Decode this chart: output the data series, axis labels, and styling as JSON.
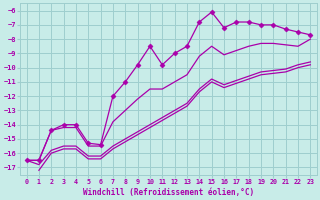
{
  "bg_color": "#c8ece8",
  "grid_color": "#9ecece",
  "line_color": "#aa00aa",
  "xlabel": "Windchill (Refroidissement éolien,°C)",
  "ylim": [
    -17.5,
    -5.5
  ],
  "xlim": [
    -0.5,
    23.5
  ],
  "xticks": [
    0,
    1,
    2,
    3,
    4,
    5,
    6,
    7,
    8,
    9,
    10,
    11,
    12,
    13,
    14,
    15,
    16,
    17,
    18,
    19,
    20,
    21,
    22,
    23
  ],
  "yticks": [
    -6,
    -7,
    -8,
    -9,
    -10,
    -11,
    -12,
    -13,
    -14,
    -15,
    -16,
    -17
  ],
  "lines": [
    {
      "x": [
        0,
        1,
        2,
        3,
        4,
        5,
        6,
        7,
        8,
        9,
        10,
        11,
        12,
        13,
        14,
        15,
        16,
        17,
        18,
        19,
        20,
        21,
        22,
        23
      ],
      "y": [
        -16.5,
        -16.5,
        -14.4,
        -14.0,
        -14.0,
        -15.3,
        -15.4,
        -12.0,
        -11.0,
        -9.8,
        -8.5,
        -9.8,
        -9.0,
        -8.5,
        -6.8,
        -6.1,
        -7.2,
        -6.8,
        -6.8,
        -7.0,
        -7.0,
        -7.3,
        -7.5,
        -7.7
      ],
      "marker": "D",
      "markersize": 2.5,
      "lw": 0.9
    },
    {
      "x": [
        0,
        1,
        2,
        3,
        4,
        5,
        6,
        7,
        8,
        9,
        10,
        11,
        12,
        13,
        14,
        15,
        16,
        17,
        18,
        19,
        20,
        21,
        22,
        23
      ],
      "y": [
        -16.5,
        -16.8,
        -15.8,
        -15.5,
        -15.5,
        -16.2,
        -16.2,
        -15.5,
        -15.0,
        -14.5,
        -14.0,
        -13.5,
        -13.0,
        -12.5,
        -11.5,
        -10.8,
        -11.2,
        -10.9,
        -10.6,
        -10.3,
        -10.2,
        -10.1,
        -9.8,
        -9.6
      ],
      "marker": null,
      "lw": 0.9
    },
    {
      "x": [
        1,
        2,
        3,
        4,
        5,
        6,
        7,
        8,
        9,
        10,
        11,
        12,
        13,
        14,
        15,
        16,
        17,
        18,
        19,
        20,
        21,
        22,
        23
      ],
      "y": [
        -17.2,
        -16.0,
        -15.7,
        -15.7,
        -16.4,
        -16.4,
        -15.7,
        -15.2,
        -14.7,
        -14.2,
        -13.7,
        -13.2,
        -12.7,
        -11.7,
        -11.0,
        -11.4,
        -11.1,
        -10.8,
        -10.5,
        -10.4,
        -10.3,
        -10.0,
        -9.8
      ],
      "marker": null,
      "lw": 0.9
    },
    {
      "x": [
        0,
        1,
        2,
        3,
        4,
        5,
        6,
        7,
        8,
        9,
        10,
        11,
        12,
        13,
        14,
        15,
        16,
        17,
        18,
        19,
        20,
        21,
        22,
        23
      ],
      "y": [
        -16.5,
        -16.5,
        -14.4,
        -14.2,
        -14.2,
        -15.5,
        -15.5,
        -13.8,
        -13.0,
        -12.2,
        -11.5,
        -11.5,
        -11.0,
        -10.5,
        -9.2,
        -8.5,
        -9.1,
        -8.8,
        -8.5,
        -8.3,
        -8.3,
        -8.4,
        -8.5,
        -8.0
      ],
      "marker": null,
      "lw": 0.9
    }
  ]
}
